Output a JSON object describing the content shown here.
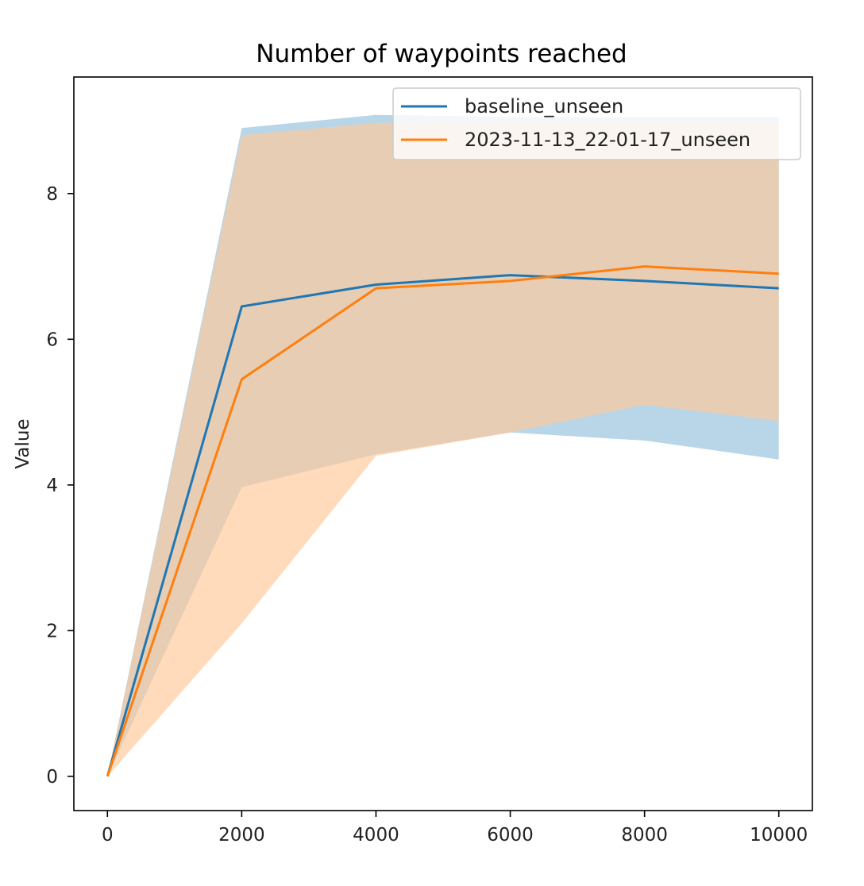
{
  "chart_data": {
    "type": "line",
    "title": "Number of waypoints reached",
    "xlabel": "",
    "ylabel": "Value",
    "xlim": [
      -500,
      10500
    ],
    "ylim": [
      -0.47,
      9.6
    ],
    "xticks": [
      0,
      2000,
      4000,
      6000,
      8000,
      10000
    ],
    "yticks": [
      0,
      2,
      4,
      6,
      8
    ],
    "grid": false,
    "legend_position": "top-right",
    "x": [
      0,
      2000,
      4000,
      6000,
      8000,
      10000
    ],
    "series": [
      {
        "name": "baseline_unseen",
        "color": "#1f77b4",
        "band_color": "#a8cce4",
        "values": [
          0,
          6.45,
          6.75,
          6.88,
          6.8,
          6.7
        ],
        "band_upper": [
          0,
          8.9,
          9.08,
          9.05,
          9.05,
          9.05
        ],
        "band_lower": [
          0,
          3.97,
          4.42,
          4.72,
          4.61,
          4.35
        ]
      },
      {
        "name": "2023-11-13_22-01-17_unseen",
        "color": "#ff7f0e",
        "band_color": "#ffc897",
        "values": [
          0,
          5.45,
          6.7,
          6.8,
          7.0,
          6.9
        ],
        "band_upper": [
          0,
          8.8,
          8.97,
          9.0,
          9.0,
          9.0
        ],
        "band_lower": [
          0,
          2.1,
          4.4,
          4.72,
          5.1,
          4.88
        ]
      }
    ]
  }
}
